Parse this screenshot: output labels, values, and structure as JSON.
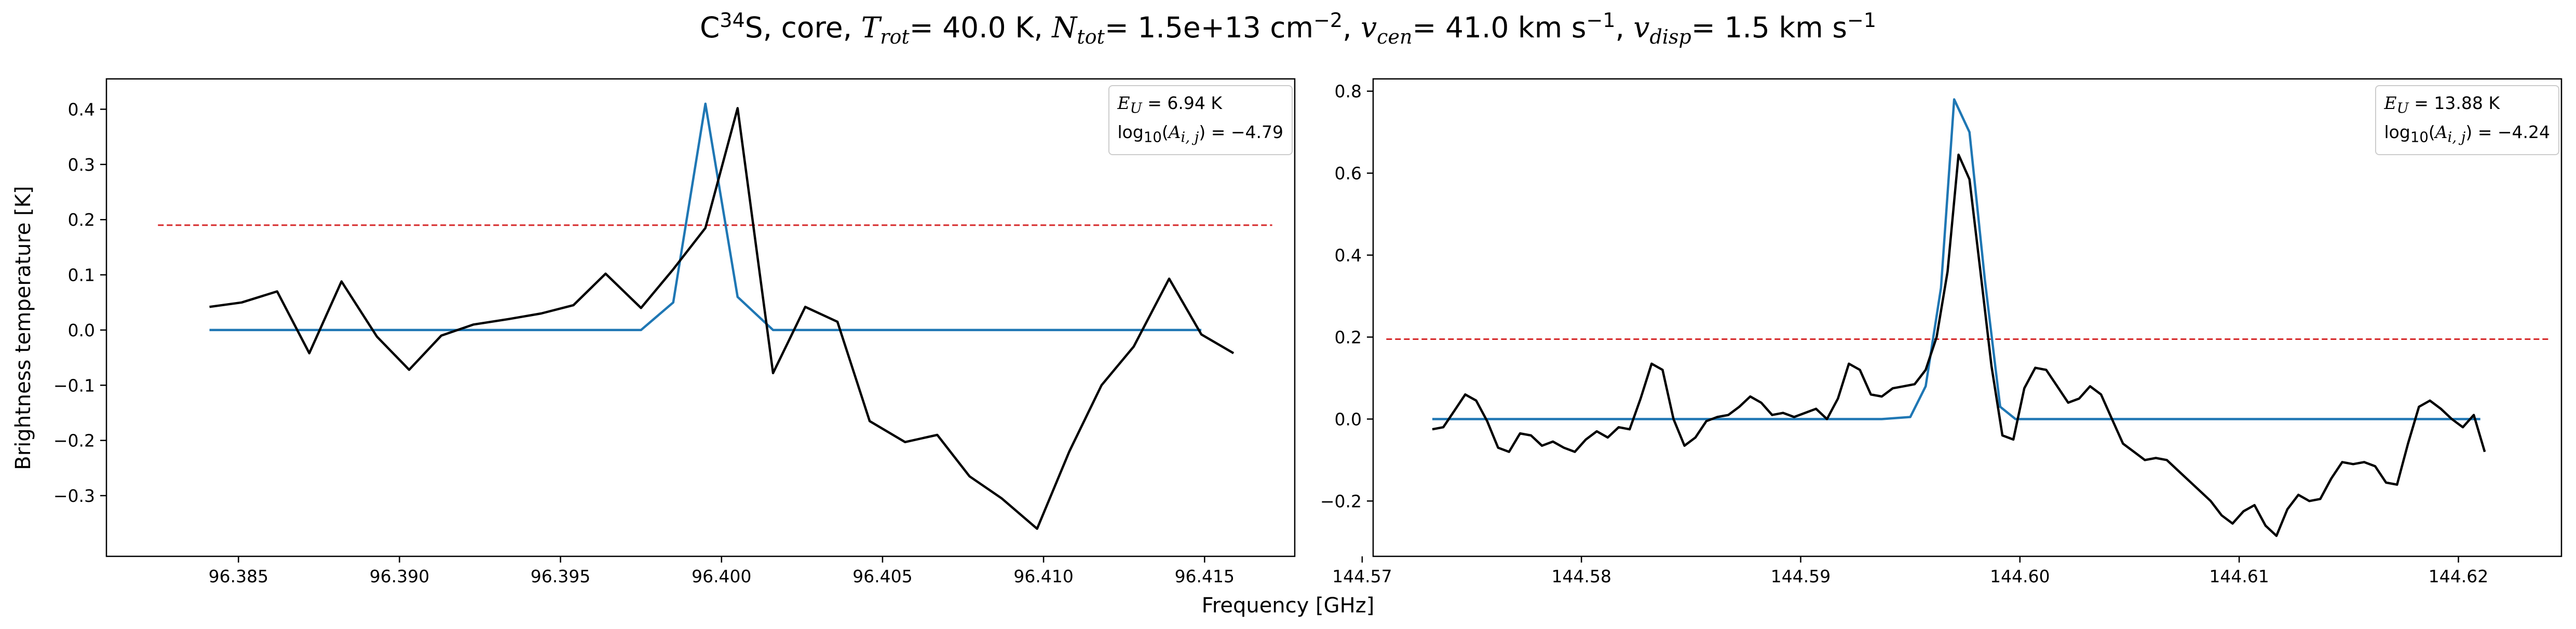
{
  "figure": {
    "title": {
      "species_base": "C",
      "species_sup": "34",
      "species_tail": "S, core, ",
      "trot_sym": "T",
      "trot_sub": "rot",
      "trot_val": "= 40.0 K, ",
      "ntot_sym": "N",
      "ntot_sub": "tot",
      "ntot_val": "= 1.5e+13 cm",
      "ntot_exp": "−2",
      "ntot_tail": ", ",
      "vcen_sym": "v",
      "vcen_sub": "cen",
      "vcen_val": "= 41.0 km s",
      "vcen_exp": "−1",
      "vcen_tail": ", ",
      "vdisp_sym": "v",
      "vdisp_sub": "disp",
      "vdisp_val": "= 1.5 km s",
      "vdisp_exp": "−1"
    },
    "xlabel": "Frequency [GHz]",
    "ylabel": "Brightness temperature [K]"
  },
  "colors": {
    "observed": "#000000",
    "model": "#1f77b4",
    "threshold": "#d62728"
  },
  "chart_data": [
    {
      "type": "line",
      "xlim": [
        96.3809,
        96.4178
      ],
      "ylim": [
        -0.41,
        0.455
      ],
      "xticks": [
        96.385,
        96.39,
        96.395,
        96.4,
        96.405,
        96.41,
        96.415
      ],
      "xtick_labels": [
        "96.385",
        "96.390",
        "96.395",
        "96.400",
        "96.405",
        "96.410",
        "96.415"
      ],
      "yticks": [
        -0.3,
        -0.2,
        -0.1,
        0.0,
        0.1,
        0.2,
        0.3,
        0.4
      ],
      "ytick_labels": [
        "−0.3",
        "−0.2",
        "−0.1",
        "0.0",
        "0.1",
        "0.2",
        "0.3",
        "0.4"
      ],
      "annotation": {
        "eu_sym": "E",
        "eu_sub": "U",
        "eu_val": " = 6.94 K",
        "log_pre": "log",
        "log_sub": "10",
        "log_mid": "(",
        "log_sym": "A",
        "log_sub2": "i, j",
        "log_val": ") = −4.79"
      },
      "threshold": {
        "y": 0.19,
        "x": [
          96.3825,
          96.4171
        ]
      },
      "series": [
        {
          "x": [
            96.3841,
            96.3851,
            96.3862,
            96.3872,
            96.3882,
            96.3893,
            96.3903,
            96.3913,
            96.3923,
            96.3934,
            96.3944,
            96.3954,
            96.3964,
            96.3975,
            96.3985,
            96.3995,
            96.4005,
            96.4016,
            96.4026,
            96.4036,
            96.4046,
            96.4057,
            96.4067,
            96.4077,
            96.4087,
            96.4098,
            96.4108,
            96.4118,
            96.4128,
            96.4139,
            96.4149
          ],
          "y": [
            0.0,
            0.0,
            0.0,
            0.0,
            0.0,
            0.0,
            0.0,
            0.0,
            0.0,
            0.0,
            0.0,
            0.0,
            0.0,
            0.0,
            0.05,
            0.41,
            0.06,
            0.0,
            0.0,
            0.0,
            0.0,
            0.0,
            0.0,
            0.0,
            0.0,
            0.0,
            0.0,
            0.0,
            0.0,
            0.0,
            0.0
          ]
        },
        {
          "x": [
            96.3841,
            96.3851,
            96.3862,
            96.3872,
            96.3882,
            96.3893,
            96.3903,
            96.3913,
            96.3923,
            96.3934,
            96.3944,
            96.3954,
            96.3964,
            96.3975,
            96.3985,
            96.3995,
            96.4005,
            96.4016,
            96.4026,
            96.4036,
            96.4046,
            96.4057,
            96.4067,
            96.4077,
            96.4087,
            96.4098,
            96.4108,
            96.4118,
            96.4128,
            96.4139,
            96.4149,
            96.4159
          ],
          "y": [
            0.042,
            0.05,
            0.07,
            -0.042,
            0.088,
            -0.012,
            -0.072,
            -0.01,
            0.01,
            0.02,
            0.03,
            0.045,
            0.102,
            0.04,
            0.11,
            0.185,
            0.402,
            -0.078,
            0.042,
            0.015,
            -0.165,
            -0.203,
            -0.19,
            -0.265,
            -0.305,
            -0.36,
            -0.22,
            -0.1,
            -0.03,
            0.093,
            -0.008,
            -0.042
          ]
        }
      ]
    },
    {
      "type": "line",
      "xlim": [
        144.5705,
        144.6247
      ],
      "ylim": [
        -0.335,
        0.83
      ],
      "xticks": [
        144.57,
        144.58,
        144.59,
        144.6,
        144.61,
        144.62
      ],
      "xtick_labels": [
        "144.57",
        "144.58",
        "144.59",
        "144.60",
        "144.61",
        "144.62"
      ],
      "yticks": [
        -0.2,
        0.0,
        0.2,
        0.4,
        0.6,
        0.8
      ],
      "ytick_labels": [
        "−0.2",
        "0.0",
        "0.2",
        "0.4",
        "0.6",
        "0.8"
      ],
      "annotation": {
        "eu_sym": "E",
        "eu_sub": "U",
        "eu_val": " = 13.88 K",
        "log_pre": "log",
        "log_sub": "10",
        "log_mid": "(",
        "log_sym": "A",
        "log_sub2": "i, j",
        "log_val": ") = −4.24"
      },
      "threshold": {
        "y": 0.195,
        "x": [
          144.5711,
          144.6242
        ]
      },
      "series": [
        {
          "x": [
            144.5732,
            144.5773,
            144.5814,
            144.5855,
            144.5896,
            144.5937,
            144.595,
            144.5957,
            144.5964,
            144.597,
            144.5977,
            144.5984,
            144.5991,
            144.5998,
            144.6005,
            144.6046,
            144.6087,
            144.6128,
            144.6169,
            144.621
          ],
          "y": [
            0.0,
            0.0,
            0.0,
            0.0,
            0.0,
            0.0,
            0.005,
            0.08,
            0.32,
            0.78,
            0.7,
            0.34,
            0.03,
            0.0,
            0.0,
            0.0,
            0.0,
            0.0,
            0.0,
            0.0
          ]
        },
        {
          "x": [
            144.5732,
            144.5737,
            144.5742,
            144.5747,
            144.5752,
            144.5757,
            144.5762,
            144.5767,
            144.5772,
            144.5777,
            144.5782,
            144.5787,
            144.5792,
            144.5797,
            144.5802,
            144.5807,
            144.5812,
            144.5817,
            144.5822,
            144.5827,
            144.5832,
            144.5837,
            144.5842,
            144.5847,
            144.5852,
            144.5857,
            144.5862,
            144.5867,
            144.5872,
            144.5877,
            144.5882,
            144.5887,
            144.5892,
            144.5897,
            144.5902,
            144.5907,
            144.5912,
            144.5917,
            144.5922,
            144.5927,
            144.5932,
            144.5937,
            144.5942,
            144.5947,
            144.5952,
            144.5957,
            144.5962,
            144.5967,
            144.5972,
            144.5977,
            144.5982,
            144.5987,
            144.5992,
            144.5997,
            144.6002,
            144.6007,
            144.6012,
            144.6017,
            144.6022,
            144.6027,
            144.6032,
            144.6037,
            144.6042,
            144.6047,
            144.6052,
            144.6057,
            144.6062,
            144.6067,
            144.6072,
            144.6077,
            144.6082,
            144.6087,
            144.6092,
            144.6097,
            144.6102,
            144.6107,
            144.6112,
            144.6117,
            144.6122,
            144.6127,
            144.6132,
            144.6137,
            144.6142,
            144.6147,
            144.6152,
            144.6157,
            144.6162,
            144.6167,
            144.6172,
            144.6177,
            144.6182,
            144.6187,
            144.6192,
            144.6197,
            144.6202,
            144.6207,
            144.6212
          ],
          "y": [
            -0.025,
            -0.02,
            0.02,
            0.06,
            0.045,
            -0.005,
            -0.07,
            -0.08,
            -0.035,
            -0.04,
            -0.065,
            -0.055,
            -0.07,
            -0.08,
            -0.05,
            -0.03,
            -0.045,
            -0.02,
            -0.025,
            0.05,
            0.135,
            0.12,
            0.0,
            -0.065,
            -0.045,
            -0.005,
            0.005,
            0.01,
            0.03,
            0.055,
            0.04,
            0.01,
            0.015,
            0.005,
            0.015,
            0.025,
            0.0,
            0.05,
            0.135,
            0.12,
            0.06,
            0.055,
            0.075,
            0.08,
            0.085,
            0.12,
            0.2,
            0.36,
            0.645,
            0.585,
            0.36,
            0.13,
            -0.04,
            -0.05,
            0.075,
            0.125,
            0.12,
            0.08,
            0.04,
            0.05,
            0.08,
            0.06,
            0.0,
            -0.06,
            -0.08,
            -0.1,
            -0.095,
            -0.1,
            -0.125,
            -0.15,
            -0.175,
            -0.2,
            -0.235,
            -0.255,
            -0.225,
            -0.21,
            -0.26,
            -0.285,
            -0.22,
            -0.185,
            -0.2,
            -0.195,
            -0.145,
            -0.105,
            -0.11,
            -0.105,
            -0.115,
            -0.155,
            -0.16,
            -0.06,
            0.03,
            0.045,
            0.025,
            0.0,
            -0.02,
            0.01,
            -0.08
          ]
        }
      ]
    }
  ]
}
